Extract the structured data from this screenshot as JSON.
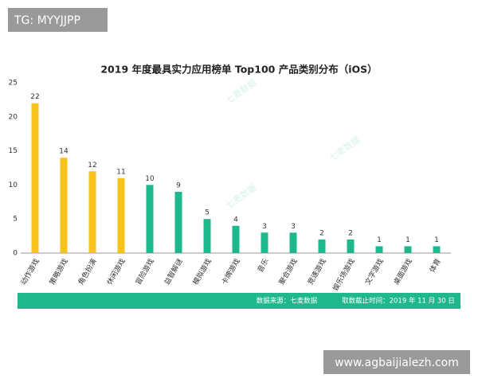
{
  "chart_data": {
    "type": "bar",
    "title": "2019 年度最具实力应用榜单 Top100 产品类别分布（iOS）",
    "categories": [
      "动作游戏",
      "策略游戏",
      "角色扮演",
      "休闲游戏",
      "冒险游戏",
      "益智解谜",
      "模拟游戏",
      "卡牌游戏",
      "音乐",
      "聚合游戏",
      "竞速游戏",
      "娱乐场游戏",
      "文字游戏",
      "桌面游戏",
      "体育"
    ],
    "values": [
      22,
      14,
      12,
      11,
      10,
      9,
      5,
      4,
      3,
      3,
      2,
      2,
      1,
      1,
      1
    ],
    "colors": [
      "#f6c21c",
      "#f6c21c",
      "#f6c21c",
      "#f6c21c",
      "#1fb88c",
      "#1fb88c",
      "#1fb88c",
      "#1fb88c",
      "#1fb88c",
      "#1fb88c",
      "#1fb88c",
      "#1fb88c",
      "#1fb88c",
      "#1fb88c",
      "#1fb88c"
    ],
    "ylim": [
      0,
      25
    ],
    "yticks": [
      0,
      5,
      10,
      15,
      20,
      25
    ],
    "grid": false,
    "source": "数据来源：七麦数据",
    "cutoff": "取数截止时间：2019 年 11 月 30 日",
    "watermarks": [
      "七麦数据",
      "七麦数据",
      "七麦数据"
    ]
  },
  "overlay": {
    "top_left": "TG: MYYJJPP",
    "bottom_right": "www.agbaijialezh.com"
  }
}
